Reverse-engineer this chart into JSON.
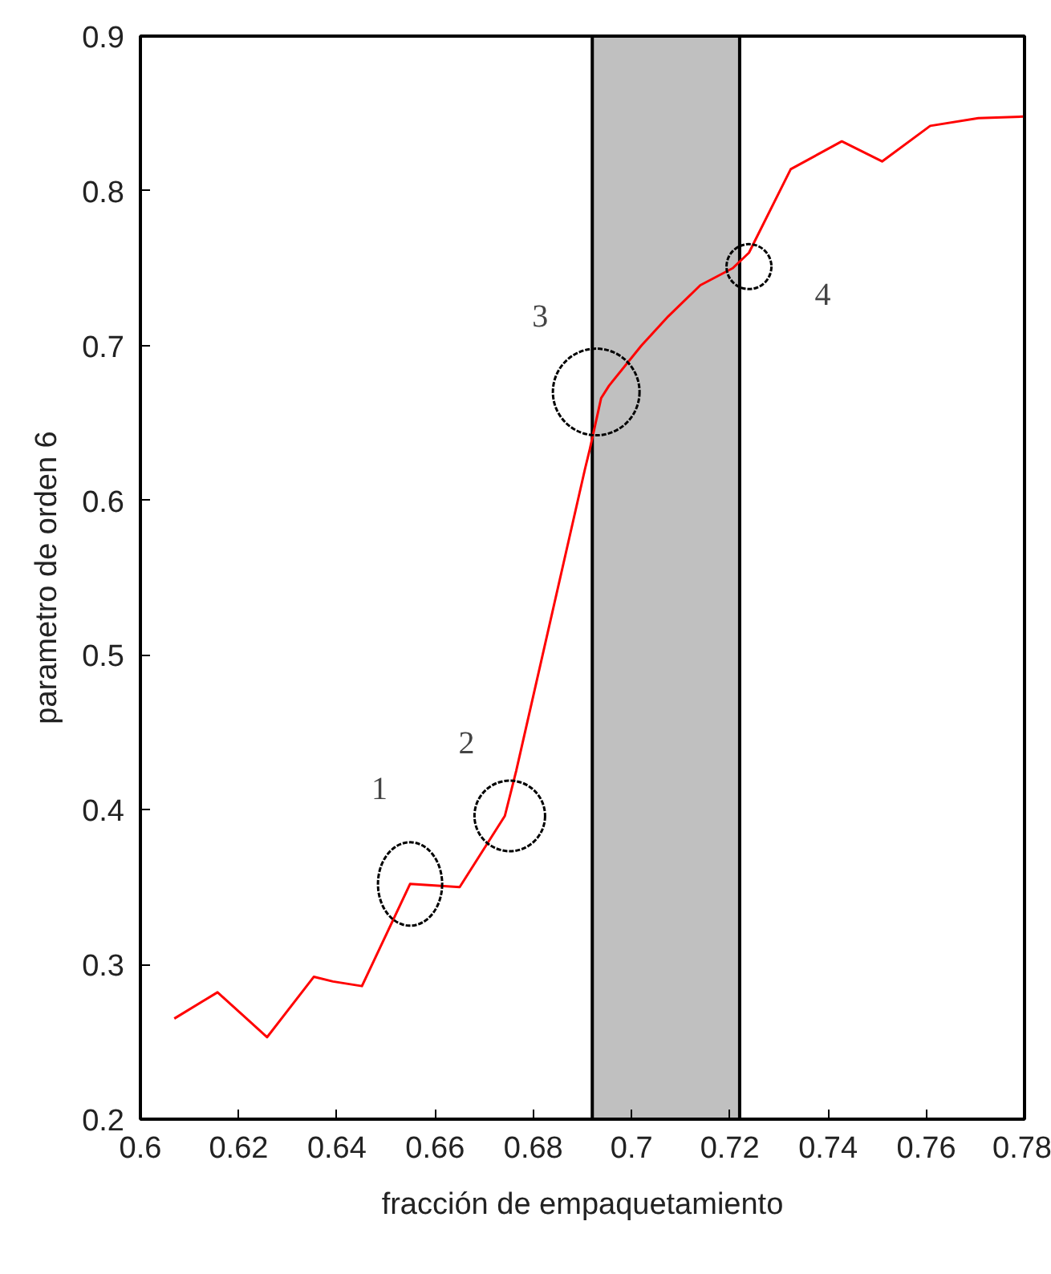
{
  "chart_data": {
    "type": "line",
    "xlabel": "fracción de empaquetamiento",
    "ylabel": "parametro de orden 6",
    "x": [
      0.6069,
      0.6157,
      0.6258,
      0.6353,
      0.6392,
      0.6451,
      0.6549,
      0.665,
      0.6742,
      0.6765,
      0.6905,
      0.6915,
      0.6938,
      0.6954,
      0.702,
      0.7075,
      0.714,
      0.7206,
      0.7239,
      0.7324,
      0.7428,
      0.751,
      0.7608,
      0.7706,
      0.7797
    ],
    "series": [
      {
        "color": "#ff0000",
        "values": [
          0.265,
          0.282,
          0.253,
          0.292,
          0.289,
          0.286,
          0.352,
          0.35,
          0.396,
          0.425,
          0.62,
          0.633,
          0.666,
          0.674,
          0.7,
          0.719,
          0.739,
          0.75,
          0.76,
          0.814,
          0.832,
          0.819,
          0.842,
          0.847,
          0.848
        ]
      }
    ],
    "xlim": [
      0.6,
      0.78
    ],
    "xticks": [
      0.6,
      0.62,
      0.64,
      0.66,
      0.68,
      0.7,
      0.72,
      0.74,
      0.76,
      0.78
    ],
    "ylim": [
      0.2,
      0.9
    ],
    "yticks": [
      0.2,
      0.3,
      0.4,
      0.5,
      0.6,
      0.7,
      0.8,
      0.9
    ],
    "bands": [
      {
        "axis": "x",
        "from": 0.692,
        "to": 0.722,
        "color": "#c0c0c0"
      }
    ],
    "annotations": [
      {
        "text": "1",
        "x": 0.6549,
        "y": 0.352
      },
      {
        "text": "2",
        "x": 0.6752,
        "y": 0.396
      },
      {
        "text": "3",
        "x": 0.6928,
        "y": 0.67
      },
      {
        "text": "4",
        "x": 0.7239,
        "y": 0.751
      }
    ],
    "grid": false,
    "marker": "none",
    "line_style": "solid"
  }
}
